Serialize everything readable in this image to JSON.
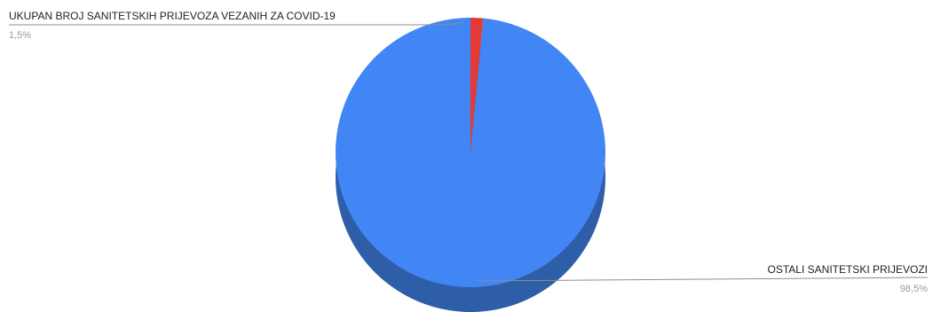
{
  "chart_data": {
    "type": "pie",
    "style": "3d",
    "categories": [
      "UKUPAN BROJ SANITETSKIH PRIJEVOZA VEZANIH ZA COVID-19",
      "OSTALI SANITETSKI PRIJEVOZI"
    ],
    "values": [
      1.5,
      98.5
    ],
    "percent_labels": [
      "1,5%",
      "98,5%"
    ],
    "colors": [
      "#e53935",
      "#4285f4"
    ],
    "side_colors": [
      "#b0261f",
      "#2e5ea8"
    ],
    "legend": "none"
  }
}
